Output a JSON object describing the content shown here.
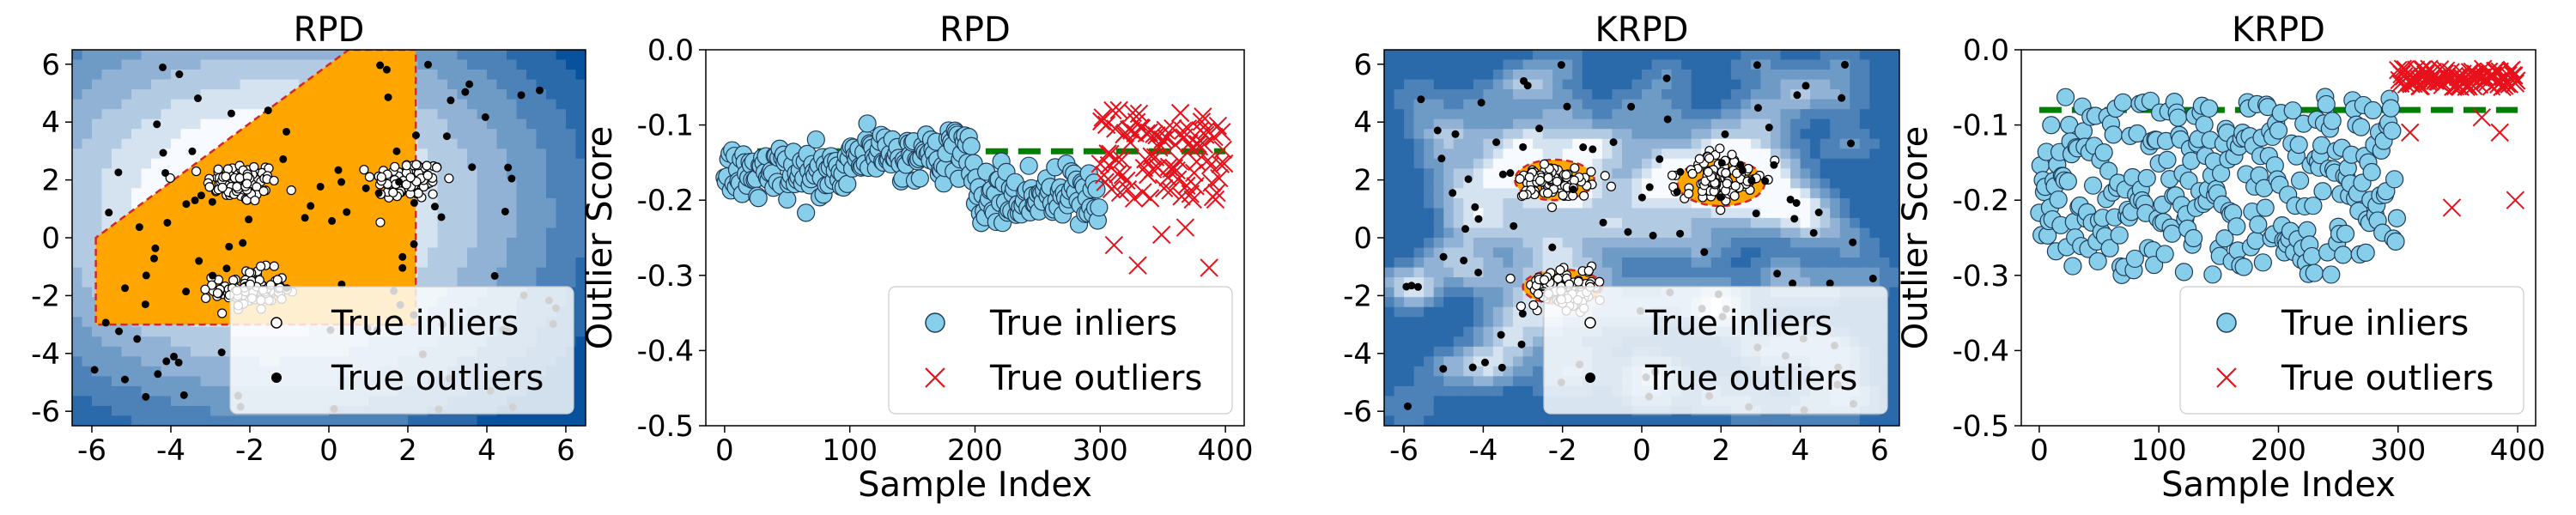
{
  "figure": {
    "panels": [
      {
        "id": "p1",
        "kind": "contour",
        "title": "RPD"
      },
      {
        "id": "p2",
        "kind": "score",
        "title": "RPD"
      },
      {
        "id": "p3",
        "kind": "contour",
        "title": "KRPD"
      },
      {
        "id": "p4",
        "kind": "score",
        "title": "KRPD"
      }
    ],
    "legend": {
      "inliers": "True inliers",
      "outliers": "True outliers"
    },
    "colors": {
      "inlier_fill": "#87ceeb",
      "outlier_marker": "#e8101a",
      "threshold_line": "#008000",
      "decision_region": "#ffa500",
      "decision_boundary": "#d62728",
      "contour_dark": "#08519c",
      "contour_light": "#f7fbff"
    }
  },
  "chart_data": [
    {
      "type": "scatter",
      "title": "RPD",
      "xlabel": "",
      "ylabel": "",
      "xlim": [
        -6.5,
        6.5
      ],
      "ylim": [
        -6.5,
        6.5
      ],
      "xticks": [
        -6,
        -4,
        -2,
        0,
        2,
        4,
        6
      ],
      "yticks": [
        -6,
        -4,
        -2,
        0,
        2,
        4,
        6
      ],
      "background": "filled contour of outlier score (blue = outlying, white = typical)",
      "decision_region_polygon": [
        [
          -5.9,
          0.0
        ],
        [
          -5.9,
          -3.0
        ],
        [
          2.2,
          -3.0
        ],
        [
          2.2,
          6.5
        ],
        [
          0.5,
          6.5
        ],
        [
          -5.9,
          0.0
        ]
      ],
      "series": [
        {
          "name": "True inliers",
          "marker": "circle-open",
          "clusters": [
            {
              "center": [
                -2.2,
                1.9
              ],
              "n": 100
            },
            {
              "center": [
                2.0,
                2.0
              ],
              "n": 100
            },
            {
              "center": [
                -2.0,
                -1.8
              ],
              "n": 100
            }
          ]
        },
        {
          "name": "True outliers",
          "marker": "dot",
          "n": 100,
          "distribution": "uniform on [-6, 6] x [-6, 6]"
        }
      ],
      "legend": "lower-right"
    },
    {
      "type": "scatter",
      "title": "RPD",
      "xlabel": "Sample Index",
      "ylabel": "Outlier Score",
      "xlim": [
        -15,
        415
      ],
      "ylim": [
        -0.5,
        0.0
      ],
      "xticks": [
        0,
        100,
        200,
        300,
        400
      ],
      "yticks": [
        0.0,
        -0.1,
        -0.2,
        -0.3,
        -0.4,
        -0.5
      ],
      "threshold": -0.135,
      "series": [
        {
          "name": "True inliers",
          "marker": "circle",
          "x_range": [
            0,
            299
          ],
          "segments": [
            {
              "x": [
                0,
                99
              ],
              "mean": -0.165,
              "spread": 0.018
            },
            {
              "x": [
                100,
                199
              ],
              "mean": -0.14,
              "spread": 0.015
            },
            {
              "x": [
                200,
                299
              ],
              "mean": -0.195,
              "spread": 0.022
            }
          ]
        },
        {
          "name": "True outliers",
          "marker": "x",
          "x_range": [
            300,
            399
          ],
          "typical_range": [
            -0.2,
            -0.08
          ],
          "lowest": -0.295
        }
      ],
      "legend": "lower-right"
    },
    {
      "type": "scatter",
      "title": "KRPD",
      "xlabel": "",
      "ylabel": "",
      "xlim": [
        -6.5,
        6.5
      ],
      "ylim": [
        -6.5,
        6.5
      ],
      "xticks": [
        -6,
        -4,
        -2,
        0,
        2,
        4,
        6
      ],
      "yticks": [
        -6,
        -4,
        -2,
        0,
        2,
        4,
        6
      ],
      "background": "filled contour of outlier score (blue = outlying, white = typical)",
      "decision_regions": [
        {
          "center": [
            -2.2,
            2.0
          ],
          "rx": 1.0,
          "ry": 0.7
        },
        {
          "center": [
            2.0,
            1.9
          ],
          "rx": 1.1,
          "ry": 0.8
        },
        {
          "center": [
            -2.0,
            -1.7
          ],
          "rx": 1.0,
          "ry": 0.6
        }
      ],
      "series": [
        {
          "name": "True inliers",
          "marker": "circle-open",
          "clusters": [
            {
              "center": [
                -2.2,
                1.9
              ],
              "n": 100
            },
            {
              "center": [
                2.0,
                2.0
              ],
              "n": 100
            },
            {
              "center": [
                -2.0,
                -1.8
              ],
              "n": 100
            }
          ]
        },
        {
          "name": "True outliers",
          "marker": "dot",
          "n": 100,
          "distribution": "uniform on [-6, 6] x [-6, 6]"
        }
      ],
      "legend": "lower-right"
    },
    {
      "type": "scatter",
      "title": "KRPD",
      "xlabel": "Sample Index",
      "ylabel": "Outlier Score",
      "xlim": [
        -15,
        415
      ],
      "ylim": [
        -0.5,
        0.0
      ],
      "xticks": [
        0,
        100,
        200,
        300,
        400
      ],
      "yticks": [
        0.0,
        -0.1,
        -0.2,
        -0.3,
        -0.4,
        -0.5
      ],
      "threshold": -0.08,
      "series": [
        {
          "name": "True inliers",
          "marker": "circle",
          "x_range": [
            0,
            299
          ],
          "typical_range": [
            -0.3,
            -0.06
          ]
        },
        {
          "name": "True outliers",
          "marker": "x",
          "x_range": [
            300,
            399
          ],
          "typical_range": [
            -0.05,
            -0.025
          ],
          "stragglers": [
            [
              310,
              -0.11
            ],
            [
              345,
              -0.21
            ],
            [
              370,
              -0.09
            ],
            [
              385,
              -0.11
            ],
            [
              398,
              -0.2
            ]
          ]
        }
      ],
      "legend": "lower-right"
    }
  ]
}
